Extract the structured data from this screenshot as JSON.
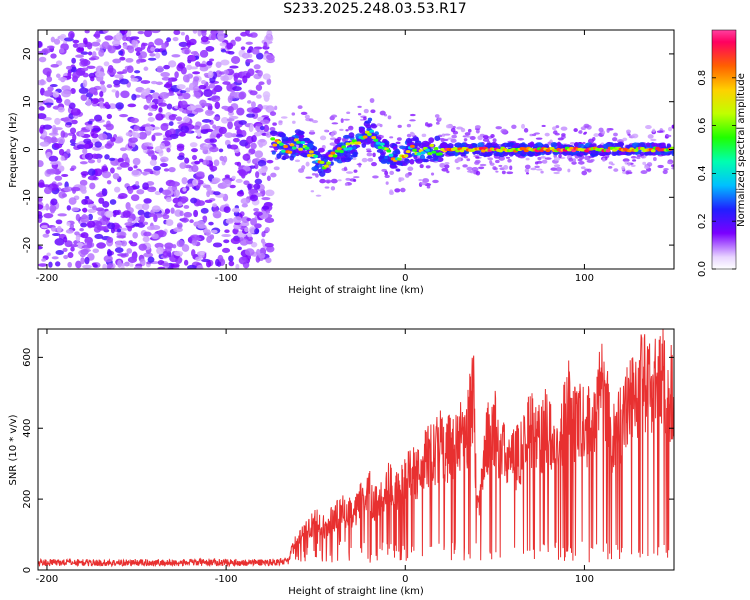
{
  "title": "S233.2025.248.03.53.R17",
  "chart_data": [
    {
      "type": "heatmap",
      "xlabel": "Height of straight line (km)",
      "ylabel": "Frequency (Hz)",
      "xlim": [
        -205,
        150
      ],
      "ylim": [
        -25,
        25
      ],
      "x_ticks": [
        {
          "value": -200,
          "label": "-200"
        },
        {
          "value": -100,
          "label": "-100"
        },
        {
          "value": 0,
          "label": "0"
        },
        {
          "value": 100,
          "label": "100"
        }
      ],
      "y_ticks": [
        {
          "value": 20,
          "label": "20"
        },
        {
          "value": 10,
          "label": "10"
        },
        {
          "value": 0,
          "label": "0"
        },
        {
          "value": -10,
          "label": "-10"
        },
        {
          "value": -20,
          "label": "-20"
        }
      ],
      "colorbar": {
        "label": "Normalized spectral amplitude",
        "range": [
          0,
          1
        ],
        "ticks": [
          {
            "value": 0.0,
            "label": "0.0"
          },
          {
            "value": 0.2,
            "label": "0.2"
          },
          {
            "value": 0.4,
            "label": "0.4"
          },
          {
            "value": 0.6,
            "label": "0.6"
          },
          {
            "value": 0.8,
            "label": "0.8"
          }
        ]
      },
      "noise_region_x": [
        -205,
        -75
      ],
      "signal_track": [
        [
          -75,
          1.5
        ],
        [
          -70,
          1
        ],
        [
          -65,
          0
        ],
        [
          -60,
          1.5
        ],
        [
          -55,
          0
        ],
        [
          -50,
          -2
        ],
        [
          -45,
          -3
        ],
        [
          -40,
          -1
        ],
        [
          -35,
          0
        ],
        [
          -30,
          0.5
        ],
        [
          -25,
          2
        ],
        [
          -20,
          4
        ],
        [
          -15,
          1
        ],
        [
          -10,
          -1
        ],
        [
          -5,
          -2
        ],
        [
          0,
          -1
        ],
        [
          5,
          0
        ],
        [
          10,
          0
        ],
        [
          20,
          0
        ],
        [
          40,
          0
        ],
        [
          60,
          0
        ],
        [
          80,
          0
        ],
        [
          100,
          0
        ],
        [
          120,
          0
        ],
        [
          150,
          0
        ]
      ]
    },
    {
      "type": "line",
      "xlabel": "Height of straight line (km)",
      "ylabel": "SNR (10 * v/v)",
      "xlim": [
        -205,
        150
      ],
      "ylim": [
        0,
        680
      ],
      "x_ticks": [
        {
          "value": -200,
          "label": "-200"
        },
        {
          "value": -100,
          "label": "-100"
        },
        {
          "value": 0,
          "label": "0"
        },
        {
          "value": 100,
          "label": "100"
        }
      ],
      "y_ticks": [
        {
          "value": 0,
          "label": "0"
        },
        {
          "value": 200,
          "label": "200"
        },
        {
          "value": 400,
          "label": "400"
        },
        {
          "value": 600,
          "label": "600"
        }
      ],
      "series": [
        {
          "color": "#e83030",
          "x": [
            -205,
            -190,
            -170,
            -150,
            -130,
            -110,
            -90,
            -75,
            -65,
            -62,
            -60,
            -55,
            -50,
            -45,
            -40,
            -35,
            -30,
            -25,
            -20,
            -15,
            -10,
            -5,
            0,
            5,
            10,
            15,
            20,
            25,
            30,
            35,
            38,
            40,
            42,
            45,
            50,
            55,
            60,
            65,
            70,
            75,
            80,
            85,
            90,
            95,
            100,
            105,
            110,
            115,
            120,
            125,
            130,
            135,
            140,
            145,
            150
          ],
          "y": [
            20,
            22,
            20,
            21,
            20,
            22,
            21,
            22,
            25,
            90,
            100,
            130,
            160,
            140,
            170,
            200,
            190,
            230,
            260,
            210,
            280,
            260,
            300,
            320,
            360,
            380,
            420,
            400,
            440,
            470,
            600,
            200,
            240,
            420,
            470,
            380,
            360,
            400,
            480,
            430,
            500,
            400,
            560,
            470,
            500,
            440,
            660,
            420,
            480,
            560,
            620,
            600,
            650,
            620,
            560
          ]
        }
      ]
    }
  ]
}
